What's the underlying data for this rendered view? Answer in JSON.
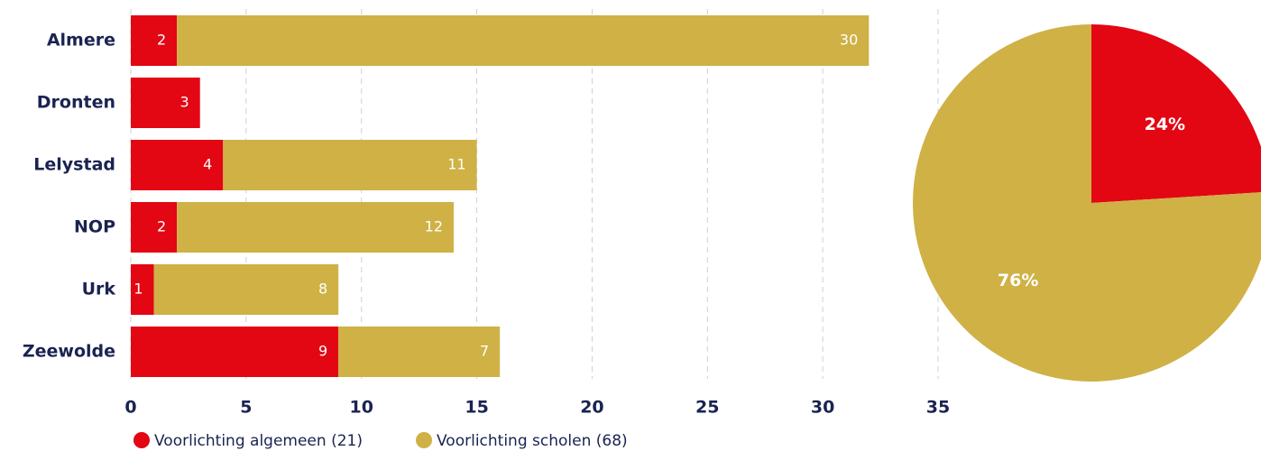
{
  "chart_data": [
    {
      "type": "bar",
      "orientation": "horizontal",
      "stacked": true,
      "categories": [
        "Almere",
        "Dronten",
        "Lelystad",
        "NOP",
        "Urk",
        "Zeewolde"
      ],
      "series": [
        {
          "name": "Voorlichting algemeen (21)",
          "color": "#e30613",
          "values": [
            2,
            3,
            4,
            2,
            1,
            9
          ]
        },
        {
          "name": "Voorlichting scholen (68)",
          "color": "#cfb146",
          "values": [
            30,
            null,
            11,
            12,
            8,
            7
          ]
        }
      ],
      "xlim": [
        0,
        35
      ],
      "xticks": [
        0,
        5,
        10,
        15,
        20,
        25,
        30,
        35
      ],
      "grid": true,
      "legend": "bottom"
    },
    {
      "type": "pie",
      "values": [
        24,
        76
      ],
      "value_labels": [
        "24%",
        "76%"
      ],
      "colors": [
        "#e30613",
        "#cfb146"
      ]
    }
  ]
}
